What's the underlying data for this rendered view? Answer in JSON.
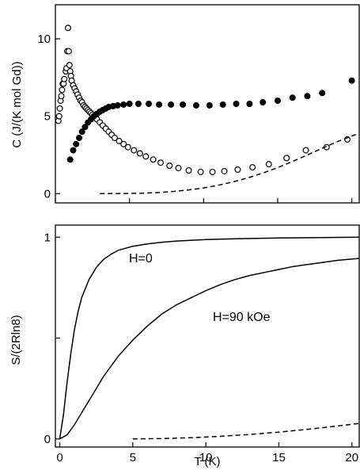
{
  "chart_data": [
    {
      "type": "scatter",
      "panel": "top",
      "title": "",
      "xlabel": "",
      "ylabel": "C (J/(K mol Gd))",
      "xlim": [
        0,
        20.5
      ],
      "ylim": [
        -0.6,
        12.2
      ],
      "x_ticks": [
        0,
        5,
        10,
        15,
        20
      ],
      "x_tick_labels": [
        "",
        "",
        "",
        "",
        ""
      ],
      "y_ticks": [
        0,
        5,
        10
      ],
      "y_tick_labels": [
        "0",
        "5",
        "10"
      ],
      "grid": false,
      "legend": "none",
      "series": [
        {
          "marker": "open-circle",
          "points": [
            [
              0.2,
              4.7
            ],
            [
              0.25,
              5.0
            ],
            [
              0.3,
              5.5
            ],
            [
              0.35,
              6.0
            ],
            [
              0.4,
              6.3
            ],
            [
              0.45,
              6.7
            ],
            [
              0.5,
              7.1
            ],
            [
              0.55,
              7.1
            ],
            [
              0.6,
              7.4
            ],
            [
              0.7,
              7.9
            ],
            [
              0.75,
              8.1
            ],
            [
              0.8,
              9.2
            ],
            [
              0.85,
              10.7
            ],
            [
              0.9,
              9.2
            ],
            [
              0.95,
              8.3
            ],
            [
              1.0,
              7.9
            ],
            [
              1.05,
              7.6
            ],
            [
              1.1,
              7.3
            ],
            [
              1.2,
              7.0
            ],
            [
              1.3,
              6.8
            ],
            [
              1.4,
              6.6
            ],
            [
              1.5,
              6.4
            ],
            [
              1.6,
              6.2
            ],
            [
              1.7,
              6.0
            ],
            [
              1.8,
              5.9
            ],
            [
              1.9,
              5.7
            ],
            [
              2.0,
              5.6
            ],
            [
              2.1,
              5.5
            ],
            [
              2.2,
              5.4
            ],
            [
              2.3,
              5.3
            ],
            [
              2.4,
              5.2
            ],
            [
              2.5,
              5.1
            ],
            [
              2.6,
              5.0
            ],
            [
              2.7,
              4.9
            ],
            [
              2.8,
              4.8
            ],
            [
              3.0,
              4.6
            ],
            [
              3.2,
              4.4
            ],
            [
              3.4,
              4.2
            ],
            [
              3.6,
              4.0
            ],
            [
              3.8,
              3.8
            ],
            [
              4.0,
              3.6
            ],
            [
              4.3,
              3.4
            ],
            [
              4.6,
              3.2
            ],
            [
              4.9,
              3.0
            ],
            [
              5.3,
              2.8
            ],
            [
              5.7,
              2.6
            ],
            [
              6.1,
              2.4
            ],
            [
              6.6,
              2.2
            ],
            [
              7.1,
              2.0
            ],
            [
              7.7,
              1.8
            ],
            [
              8.3,
              1.65
            ],
            [
              9.0,
              1.5
            ],
            [
              9.8,
              1.4
            ],
            [
              10.6,
              1.4
            ],
            [
              11.4,
              1.45
            ],
            [
              12.3,
              1.55
            ],
            [
              13.3,
              1.7
            ],
            [
              14.4,
              1.9
            ],
            [
              15.6,
              2.3
            ],
            [
              16.9,
              2.8
            ],
            [
              18.3,
              3.0
            ],
            [
              19.7,
              3.5
            ]
          ]
        },
        {
          "marker": "filled-circle",
          "points": [
            [
              1.0,
              2.2
            ],
            [
              1.2,
              2.8
            ],
            [
              1.4,
              3.2
            ],
            [
              1.6,
              3.6
            ],
            [
              1.8,
              4.0
            ],
            [
              2.0,
              4.3
            ],
            [
              2.2,
              4.6
            ],
            [
              2.4,
              4.8
            ],
            [
              2.6,
              5.0
            ],
            [
              2.8,
              5.15
            ],
            [
              3.0,
              5.3
            ],
            [
              3.2,
              5.4
            ],
            [
              3.4,
              5.5
            ],
            [
              3.6,
              5.6
            ],
            [
              3.9,
              5.65
            ],
            [
              4.2,
              5.7
            ],
            [
              4.6,
              5.75
            ],
            [
              5.0,
              5.8
            ],
            [
              5.6,
              5.8
            ],
            [
              6.3,
              5.8
            ],
            [
              7.0,
              5.75
            ],
            [
              7.8,
              5.75
            ],
            [
              8.6,
              5.75
            ],
            [
              9.5,
              5.7
            ],
            [
              10.4,
              5.7
            ],
            [
              11.3,
              5.75
            ],
            [
              12.2,
              5.8
            ],
            [
              13.1,
              5.8
            ],
            [
              14.0,
              5.9
            ],
            [
              15.0,
              6.0
            ],
            [
              16.0,
              6.2
            ],
            [
              17.0,
              6.3
            ],
            [
              18.0,
              6.5
            ],
            [
              20.0,
              7.3
            ]
          ]
        },
        {
          "marker": "dashed-line",
          "points": [
            [
              3,
              0.0
            ],
            [
              5,
              0.01
            ],
            [
              6,
              0.03
            ],
            [
              7,
              0.07
            ],
            [
              8,
              0.14
            ],
            [
              9,
              0.24
            ],
            [
              10,
              0.37
            ],
            [
              11,
              0.54
            ],
            [
              12,
              0.76
            ],
            [
              13,
              1.02
            ],
            [
              14,
              1.33
            ],
            [
              15,
              1.68
            ],
            [
              16,
              2.08
            ],
            [
              17,
              2.5
            ],
            [
              18,
              2.93
            ],
            [
              19,
              3.35
            ],
            [
              20.5,
              3.9
            ]
          ]
        }
      ]
    },
    {
      "type": "line",
      "panel": "bottom",
      "title": "",
      "xlabel": "T (K)",
      "ylabel": "S/(2Rln8)",
      "xlim": [
        -0.3,
        20.5
      ],
      "ylim": [
        -0.04,
        1.06
      ],
      "x_ticks": [
        0,
        5,
        10,
        15,
        20
      ],
      "x_tick_labels": [
        "0",
        "5",
        "10",
        "15",
        "20"
      ],
      "y_ticks": [
        0,
        0.5,
        1
      ],
      "y_tick_labels": [
        "0",
        "",
        "1"
      ],
      "grid": false,
      "legend": "none",
      "annotations": [
        "H=0",
        "H=90 kOe"
      ],
      "series": [
        {
          "name": "H=0",
          "style": "solid",
          "points": [
            [
              0,
              0.0
            ],
            [
              0.25,
              0.12
            ],
            [
              0.5,
              0.28
            ],
            [
              0.75,
              0.42
            ],
            [
              1.0,
              0.54
            ],
            [
              1.25,
              0.63
            ],
            [
              1.5,
              0.7
            ],
            [
              2.0,
              0.79
            ],
            [
              2.5,
              0.85
            ],
            [
              3.0,
              0.89
            ],
            [
              3.5,
              0.915
            ],
            [
              4.0,
              0.935
            ],
            [
              5.0,
              0.955
            ],
            [
              6.0,
              0.967
            ],
            [
              7.0,
              0.975
            ],
            [
              8.0,
              0.981
            ],
            [
              10.0,
              0.988
            ],
            [
              12.0,
              0.992
            ],
            [
              15.0,
              0.996
            ],
            [
              20.5,
              1.0
            ]
          ]
        },
        {
          "name": "H=90 kOe",
          "style": "solid",
          "points": [
            [
              0,
              0.0
            ],
            [
              0.5,
              0.02
            ],
            [
              1.0,
              0.07
            ],
            [
              1.5,
              0.13
            ],
            [
              2.0,
              0.19
            ],
            [
              2.5,
              0.25
            ],
            [
              3.0,
              0.31
            ],
            [
              4.0,
              0.41
            ],
            [
              5.0,
              0.49
            ],
            [
              6.0,
              0.56
            ],
            [
              7.0,
              0.62
            ],
            [
              8.0,
              0.665
            ],
            [
              9.0,
              0.7
            ],
            [
              10.0,
              0.735
            ],
            [
              11.0,
              0.765
            ],
            [
              12.0,
              0.79
            ],
            [
              13.0,
              0.81
            ],
            [
              14.0,
              0.825
            ],
            [
              15.0,
              0.84
            ],
            [
              16.0,
              0.855
            ],
            [
              17.0,
              0.865
            ],
            [
              18.0,
              0.875
            ],
            [
              19.0,
              0.885
            ],
            [
              20.5,
              0.895
            ]
          ]
        },
        {
          "style": "dashed",
          "points": [
            [
              5,
              0.0
            ],
            [
              7,
              0.002
            ],
            [
              9,
              0.006
            ],
            [
              11,
              0.013
            ],
            [
              13,
              0.022
            ],
            [
              15,
              0.034
            ],
            [
              17,
              0.048
            ],
            [
              19,
              0.064
            ],
            [
              20.5,
              0.077
            ]
          ]
        }
      ]
    }
  ]
}
